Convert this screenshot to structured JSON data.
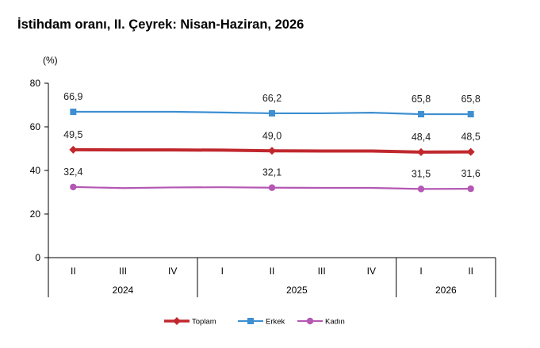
{
  "chart_data": {
    "type": "line",
    "title": "İstihdam oranı, II. Çeyrek: Nisan-Haziran, 2026",
    "ylabel": "(%)",
    "xlabel": "",
    "ylim": [
      0,
      80
    ],
    "yticks": [
      0,
      20,
      40,
      60,
      80
    ],
    "grid": false,
    "legend_position": "bottom",
    "categories": [
      "II",
      "III",
      "IV",
      "I",
      "II",
      "III",
      "IV",
      "I",
      "II"
    ],
    "year_groups": [
      {
        "label": "2024",
        "count": 3
      },
      {
        "label": "2025",
        "count": 4
      },
      {
        "label": "2026",
        "count": 2
      }
    ],
    "series": [
      {
        "name": "Toplam",
        "color": "#c0282e",
        "marker": "diamond",
        "values": [
          49.5,
          49.4,
          49.4,
          49.3,
          49.0,
          48.9,
          48.9,
          48.4,
          48.5
        ],
        "labels": [
          "49,5",
          "",
          "",
          "",
          "49,0",
          "",
          "",
          "48,4",
          "48,5"
        ]
      },
      {
        "name": "Erkek",
        "color": "#3d8fd1",
        "marker": "square",
        "values": [
          66.9,
          66.9,
          66.9,
          66.6,
          66.2,
          66.2,
          66.5,
          65.8,
          65.8
        ],
        "labels": [
          "66,9",
          "",
          "",
          "",
          "66,2",
          "",
          "",
          "65,8",
          "65,8"
        ]
      },
      {
        "name": "Kadın",
        "color": "#b458b4",
        "marker": "circle",
        "values": [
          32.4,
          31.9,
          32.2,
          32.3,
          32.1,
          32.0,
          32.0,
          31.5,
          31.6
        ],
        "labels": [
          "32,4",
          "",
          "",
          "",
          "32,1",
          "",
          "",
          "31,5",
          "31,6"
        ]
      }
    ]
  }
}
